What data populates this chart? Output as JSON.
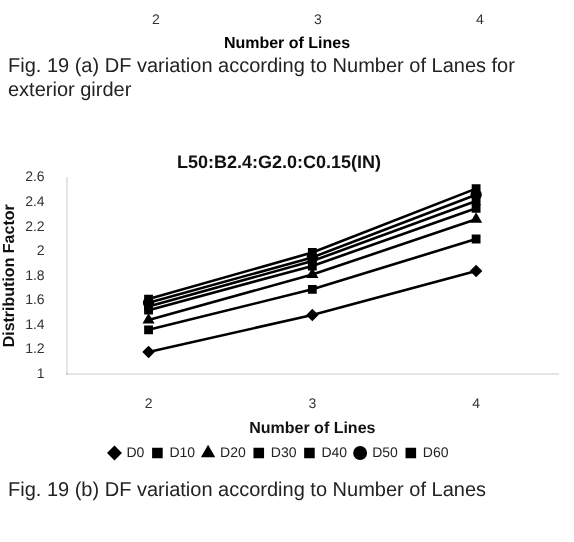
{
  "chart_data": [
    {
      "type": "other",
      "categories": [
        "2",
        "3",
        "4"
      ],
      "xlabel": "Number of Lines",
      "annotations": [
        "Fig. 19 (a) DF variation according to Number of Lanes for exterior girder"
      ]
    },
    {
      "type": "line",
      "title": "L50:B2.4:G2.0:C0.15(IN)",
      "xlabel": "Number of Lines",
      "ylabel": "Distribution Factor",
      "categories": [
        "2",
        "3",
        "4"
      ],
      "ylim": [
        1,
        2.6
      ],
      "yticks": [
        1,
        1.2,
        1.4,
        1.6,
        1.8,
        2,
        2.2,
        2.4,
        2.6
      ],
      "grid": false,
      "legend": "bottom",
      "line_style": "solid",
      "series": [
        {
          "name": "D0",
          "color": "#000000",
          "marker": "diamond",
          "values": [
            1.18,
            1.48,
            1.84
          ]
        },
        {
          "name": "D10",
          "color": "#000000",
          "marker": "square",
          "values": [
            1.36,
            1.69,
            2.1
          ]
        },
        {
          "name": "D20",
          "color": "#000000",
          "marker": "triangle",
          "values": [
            1.44,
            1.81,
            2.26
          ]
        },
        {
          "name": "D30",
          "color": "#000000",
          "marker": "square",
          "values": [
            1.52,
            1.88,
            2.35
          ]
        },
        {
          "name": "D40",
          "color": "#000000",
          "marker": "square",
          "values": [
            1.55,
            1.92,
            2.41
          ]
        },
        {
          "name": "D50",
          "color": "#000000",
          "marker": "circle",
          "values": [
            1.58,
            1.95,
            2.46
          ]
        },
        {
          "name": "D60",
          "color": "#000000",
          "marker": "square",
          "values": [
            1.61,
            1.99,
            2.51
          ]
        }
      ],
      "annotations": [
        "Fig. 19 (b) DF variation according to Number of Lanes"
      ]
    }
  ]
}
